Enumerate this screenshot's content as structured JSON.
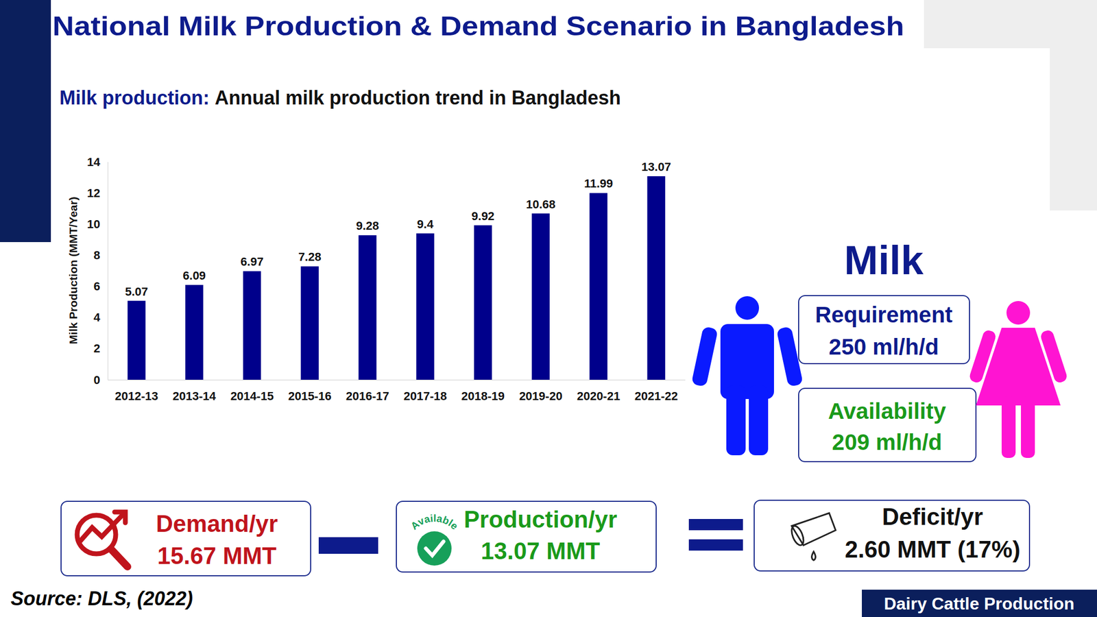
{
  "title": "National Milk Production & Demand Scenario in Bangladesh",
  "chart_data": {
    "type": "bar",
    "title_label": "Milk production:",
    "title": "Annual milk production trend in Bangladesh",
    "y_label": "Milk Production (MMT/Year)",
    "categories": [
      "2012-13",
      "2013-14",
      "2014-15",
      "2015-16",
      "2016-17",
      "2017-18",
      "2018-19",
      "2019-20",
      "2020-21",
      "2021-22"
    ],
    "values": [
      5.07,
      6.09,
      6.97,
      7.28,
      9.28,
      9.4,
      9.92,
      10.68,
      11.99,
      13.07
    ],
    "color": "#00008b",
    "ylim": [
      0,
      14
    ],
    "yticks": [
      0,
      2,
      4,
      6,
      8,
      10,
      12,
      14
    ],
    "grid": false,
    "data_labels": true
  },
  "milk_panel": {
    "heading": "Milk",
    "requirement": {
      "label": "Requirement",
      "value": "250 ml/h/d"
    },
    "availability": {
      "label": "Availability",
      "value": "209 ml/h/d"
    }
  },
  "balance": {
    "demand": {
      "label": "Demand/yr",
      "value": "15.67 MMT"
    },
    "production": {
      "label": "Production/yr",
      "value": "13.07 MMT",
      "badge": "Available"
    },
    "deficit": {
      "label": "Deficit/yr",
      "value": "2.60 MMT (17%)"
    }
  },
  "source": "Source: DLS, (2022)",
  "footer": "Dairy Cattle Production"
}
